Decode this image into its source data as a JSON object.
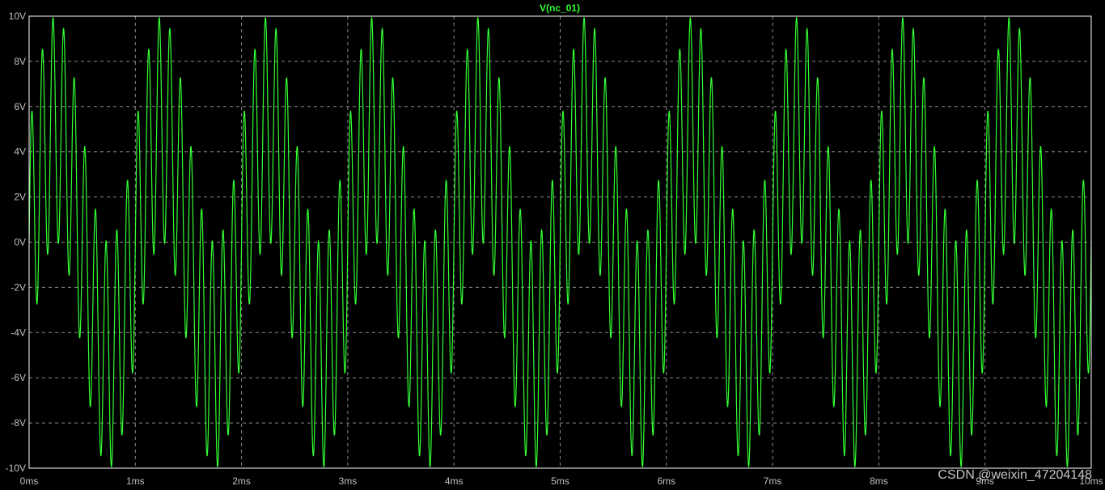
{
  "chart_data": {
    "type": "line",
    "title": "V(nc_01)",
    "xlabel": "",
    "ylabel": "",
    "xlim": [
      0,
      10
    ],
    "ylim": [
      -10,
      10
    ],
    "x_unit": "ms",
    "y_unit": "V",
    "x_ticks": [
      "0ms",
      "1ms",
      "2ms",
      "3ms",
      "4ms",
      "5ms",
      "6ms",
      "7ms",
      "8ms",
      "9ms",
      "10ms"
    ],
    "y_ticks": [
      "10V",
      "8V",
      "6V",
      "4V",
      "2V",
      "0V",
      "-2V",
      "-4V",
      "-6V",
      "-8V",
      "-10V"
    ],
    "grid": true,
    "series": [
      {
        "name": "V(nc_01)",
        "color": "#33ff33",
        "components": [
          {
            "amplitude_v": 5,
            "frequency_khz": 1
          },
          {
            "amplitude_v": 5,
            "frequency_khz": 10
          }
        ],
        "sample_count": 4000
      }
    ]
  },
  "colors": {
    "background": "#000000",
    "frame": "#ffffff",
    "grid": "#8a8a8a",
    "tick_label": "#c0c0c0",
    "trace": "#33ff33"
  },
  "watermark": "CSDN @weixin_47204148"
}
